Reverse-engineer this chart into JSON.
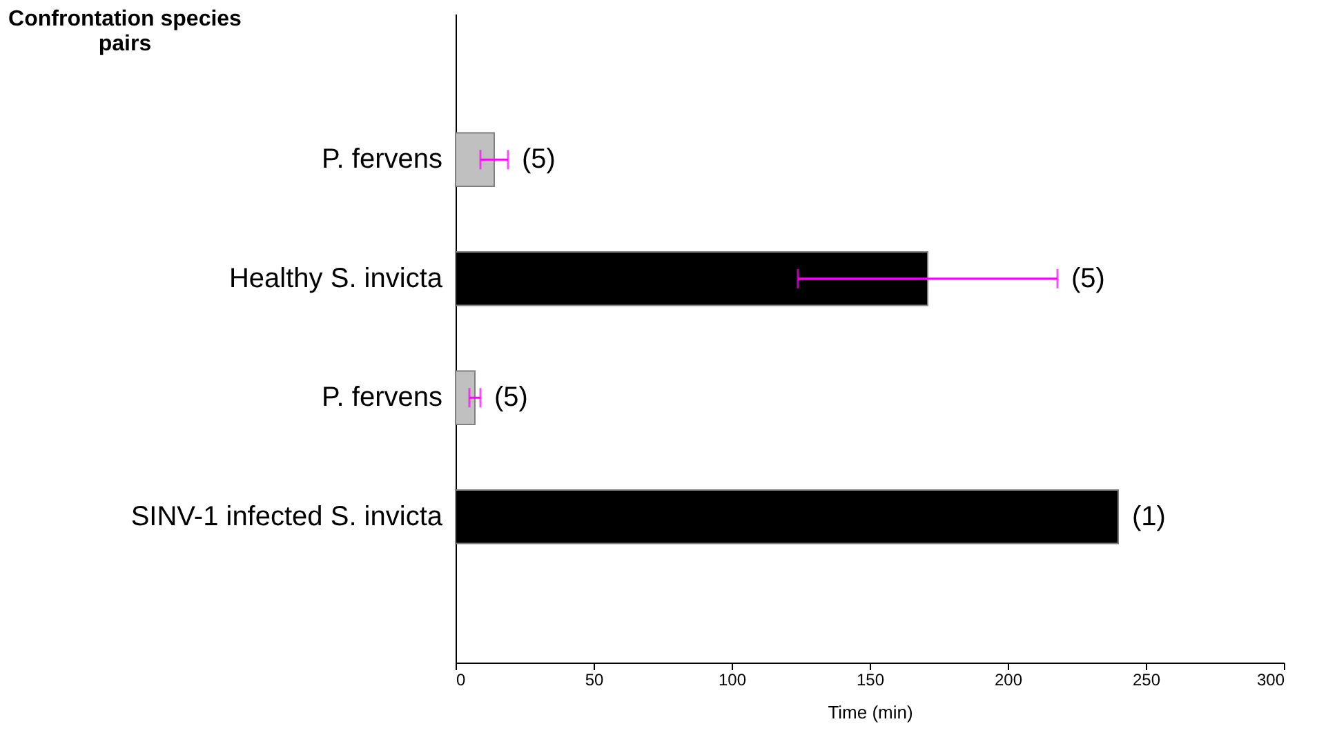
{
  "chart_data": {
    "type": "bar",
    "orientation": "horizontal",
    "ylabel": "Confrontation species pairs",
    "xlabel": "Time (min)",
    "categories": [
      "P. fervens",
      "Healthy S. invicta",
      "P. fervens",
      "SINV-1 infected S. invicta"
    ],
    "values": [
      14,
      171,
      7,
      240
    ],
    "colors": [
      "#c0c0c0",
      "#000000",
      "#c0c0c0",
      "#000000"
    ],
    "errors": [
      5,
      47,
      2,
      null
    ],
    "annotations": [
      "(5)",
      "(5)",
      "(5)",
      "(1)"
    ],
    "xlim": [
      0,
      300
    ],
    "xticks": [
      0,
      50,
      100,
      150,
      200,
      250,
      300
    ],
    "grid": false
  }
}
